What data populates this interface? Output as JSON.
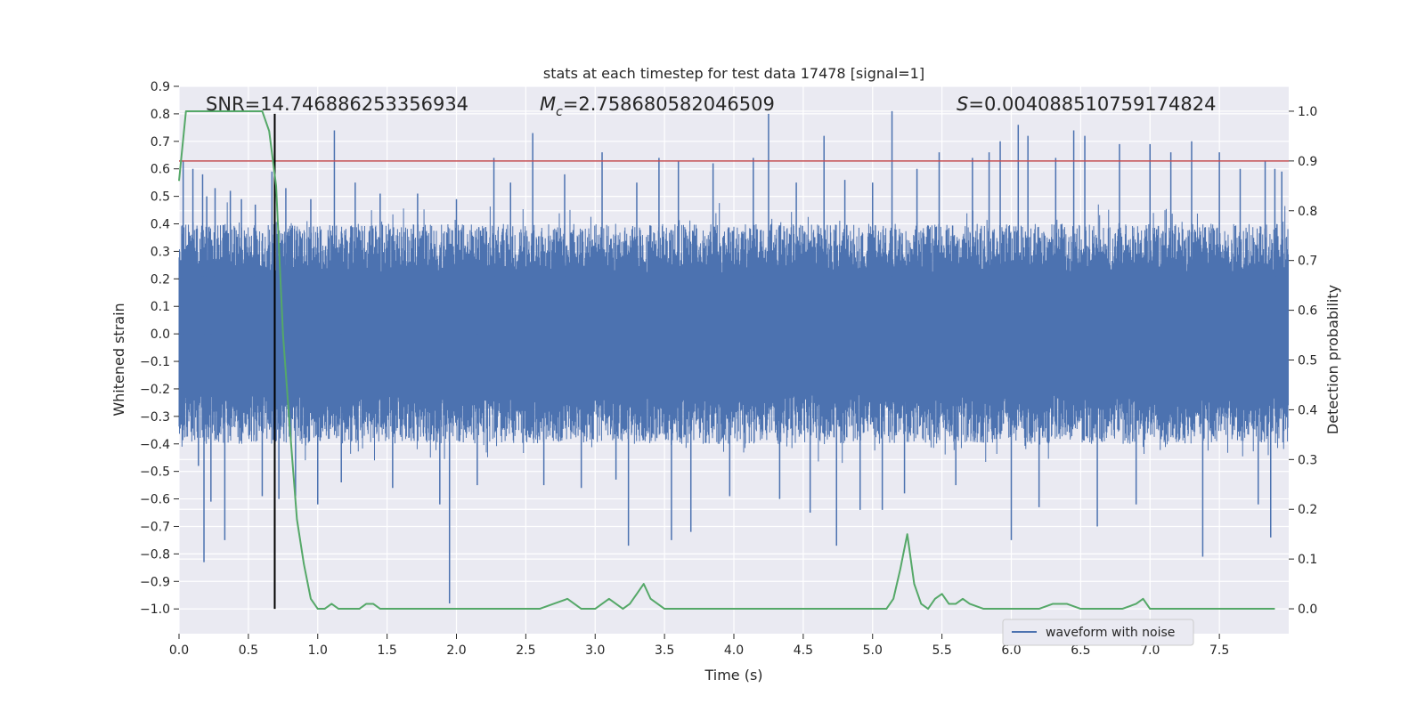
{
  "chart_data": {
    "type": "line",
    "title": "stats at each timestep for test data 17478 [signal=1]",
    "xlabel": "Time (s)",
    "ylabel": "Whitened strain",
    "y2label": "Detection probability",
    "xlim": [
      0.0,
      8.0
    ],
    "ylim": [
      -1.09,
      0.9
    ],
    "y2lim": [
      -0.05,
      1.05
    ],
    "x_ticks": [
      "0.0",
      "0.5",
      "1.0",
      "1.5",
      "2.0",
      "2.5",
      "3.0",
      "3.5",
      "4.0",
      "4.5",
      "5.0",
      "5.5",
      "6.0",
      "6.5",
      "7.0",
      "7.5"
    ],
    "y_ticks": [
      "0.9",
      "0.8",
      "0.7",
      "0.6",
      "0.5",
      "0.4",
      "0.3",
      "0.2",
      "0.1",
      "0.0",
      "−0.1",
      "−0.2",
      "−0.3",
      "−0.4",
      "−0.5",
      "−0.6",
      "−0.7",
      "−0.8",
      "−0.9",
      "−1.0"
    ],
    "y2_ticks": [
      "1.0",
      "0.9",
      "0.8",
      "0.7",
      "0.6",
      "0.5",
      "0.4",
      "0.3",
      "0.2",
      "0.1",
      "0.0"
    ],
    "grid": true,
    "legend_position": "bottom-right",
    "annotations": {
      "snr": "SNR=14.746886253356934",
      "mc_symbol": "M",
      "mc_sub": "c",
      "mc_value": "=2.758680582046509",
      "s_symbol": "S",
      "s_value": "=0.004088510759174824"
    },
    "threshold_right_axis": 0.9,
    "event_time": 0.69,
    "series": [
      {
        "name": "waveform with noise",
        "axis": "left",
        "color": "#4c72b0",
        "render": "dense noise envelope",
        "duration": 8.0,
        "core_amplitude": 0.4,
        "spikes": [
          [
            0.03,
            0.63
          ],
          [
            0.04,
            -0.33
          ],
          [
            0.1,
            0.6
          ],
          [
            0.14,
            -0.48
          ],
          [
            0.17,
            0.58
          ],
          [
            0.18,
            -0.83
          ],
          [
            0.2,
            0.5
          ],
          [
            0.23,
            -0.61
          ],
          [
            0.26,
            0.53
          ],
          [
            0.33,
            -0.75
          ],
          [
            0.37,
            0.52
          ],
          [
            0.45,
            0.49
          ],
          [
            0.55,
            0.47
          ],
          [
            0.6,
            -0.59
          ],
          [
            0.67,
            0.59
          ],
          [
            0.72,
            -0.6
          ],
          [
            0.77,
            0.53
          ],
          [
            0.84,
            -0.59
          ],
          [
            0.95,
            0.49
          ],
          [
            1.0,
            -0.62
          ],
          [
            1.12,
            0.74
          ],
          [
            1.17,
            -0.54
          ],
          [
            1.27,
            0.55
          ],
          [
            1.45,
            0.51
          ],
          [
            1.54,
            -0.56
          ],
          [
            1.72,
            0.51
          ],
          [
            1.88,
            -0.62
          ],
          [
            1.95,
            -0.98
          ],
          [
            2.0,
            0.49
          ],
          [
            2.15,
            -0.55
          ],
          [
            2.27,
            0.64
          ],
          [
            2.39,
            0.55
          ],
          [
            2.55,
            0.73
          ],
          [
            2.63,
            -0.55
          ],
          [
            2.78,
            0.58
          ],
          [
            2.9,
            -0.56
          ],
          [
            3.05,
            0.66
          ],
          [
            3.15,
            -0.53
          ],
          [
            3.24,
            -0.77
          ],
          [
            3.3,
            0.55
          ],
          [
            3.46,
            0.64
          ],
          [
            3.55,
            -0.75
          ],
          [
            3.6,
            0.63
          ],
          [
            3.69,
            -0.72
          ],
          [
            3.85,
            0.62
          ],
          [
            3.97,
            -0.59
          ],
          [
            4.14,
            0.64
          ],
          [
            4.25,
            0.8
          ],
          [
            4.33,
            -0.6
          ],
          [
            4.45,
            0.55
          ],
          [
            4.55,
            -0.65
          ],
          [
            4.65,
            0.72
          ],
          [
            4.74,
            -0.77
          ],
          [
            4.8,
            0.56
          ],
          [
            4.91,
            -0.64
          ],
          [
            5.0,
            0.55
          ],
          [
            5.07,
            -0.64
          ],
          [
            5.14,
            0.81
          ],
          [
            5.23,
            -0.58
          ],
          [
            5.32,
            0.6
          ],
          [
            5.48,
            0.66
          ],
          [
            5.6,
            -0.55
          ],
          [
            5.72,
            0.64
          ],
          [
            5.84,
            0.66
          ],
          [
            5.92,
            0.7
          ],
          [
            6.0,
            -0.75
          ],
          [
            6.05,
            0.76
          ],
          [
            6.12,
            0.72
          ],
          [
            6.2,
            -0.63
          ],
          [
            6.32,
            0.64
          ],
          [
            6.45,
            0.74
          ],
          [
            6.53,
            0.72
          ],
          [
            6.62,
            -0.7
          ],
          [
            6.78,
            0.69
          ],
          [
            6.9,
            -0.62
          ],
          [
            7.0,
            0.69
          ],
          [
            7.15,
            0.66
          ],
          [
            7.3,
            0.7
          ],
          [
            7.38,
            -0.81
          ],
          [
            7.5,
            0.66
          ],
          [
            7.65,
            0.6
          ],
          [
            7.78,
            -0.62
          ],
          [
            7.83,
            0.63
          ],
          [
            7.87,
            -0.74
          ],
          [
            7.9,
            0.6
          ],
          [
            7.95,
            0.59
          ]
        ]
      },
      {
        "name": "",
        "axis": "right",
        "color": "#55a868",
        "x": [
          0.0,
          0.05,
          0.1,
          0.15,
          0.2,
          0.3,
          0.4,
          0.5,
          0.6,
          0.65,
          0.7,
          0.75,
          0.8,
          0.85,
          0.9,
          0.95,
          1.0,
          1.05,
          1.1,
          1.15,
          1.2,
          1.25,
          1.3,
          1.35,
          1.4,
          1.45,
          1.5,
          1.6,
          1.7,
          1.8,
          1.9,
          2.0,
          2.1,
          2.2,
          2.3,
          2.4,
          2.5,
          2.6,
          2.7,
          2.8,
          2.9,
          3.0,
          3.1,
          3.2,
          3.25,
          3.3,
          3.35,
          3.4,
          3.45,
          3.5,
          3.6,
          3.7,
          3.8,
          3.9,
          4.0,
          4.1,
          4.2,
          4.3,
          4.4,
          4.5,
          4.6,
          4.7,
          4.8,
          4.9,
          5.0,
          5.1,
          5.15,
          5.2,
          5.25,
          5.3,
          5.35,
          5.4,
          5.45,
          5.5,
          5.55,
          5.6,
          5.65,
          5.7,
          5.8,
          5.9,
          6.0,
          6.1,
          6.2,
          6.3,
          6.4,
          6.5,
          6.6,
          6.7,
          6.8,
          6.9,
          6.95,
          7.0,
          7.1,
          7.2,
          7.3,
          7.4,
          7.5,
          7.6,
          7.7,
          7.8,
          7.9
        ],
        "values": [
          0.86,
          1.0,
          1.0,
          1.0,
          1.0,
          1.0,
          1.0,
          1.0,
          1.0,
          0.96,
          0.85,
          0.55,
          0.36,
          0.18,
          0.09,
          0.02,
          0.0,
          0.0,
          0.01,
          0.0,
          0.0,
          0.0,
          0.0,
          0.01,
          0.01,
          0.0,
          0.0,
          0.0,
          0.0,
          0.0,
          0.0,
          0.0,
          0.0,
          0.0,
          0.0,
          0.0,
          0.0,
          0.0,
          0.01,
          0.02,
          0.0,
          0.0,
          0.02,
          0.0,
          0.01,
          0.03,
          0.05,
          0.02,
          0.01,
          0.0,
          0.0,
          0.0,
          0.0,
          0.0,
          0.0,
          0.0,
          0.0,
          0.0,
          0.0,
          0.0,
          0.0,
          0.0,
          0.0,
          0.0,
          0.0,
          0.0,
          0.02,
          0.08,
          0.15,
          0.05,
          0.01,
          0.0,
          0.02,
          0.03,
          0.01,
          0.01,
          0.02,
          0.01,
          0.0,
          0.0,
          0.0,
          0.0,
          0.0,
          0.01,
          0.01,
          0.0,
          0.0,
          0.0,
          0.0,
          0.01,
          0.02,
          0.0,
          0.0,
          0.0,
          0.0,
          0.0,
          0.0,
          0.0,
          0.0,
          0.0,
          0.0
        ]
      }
    ]
  }
}
